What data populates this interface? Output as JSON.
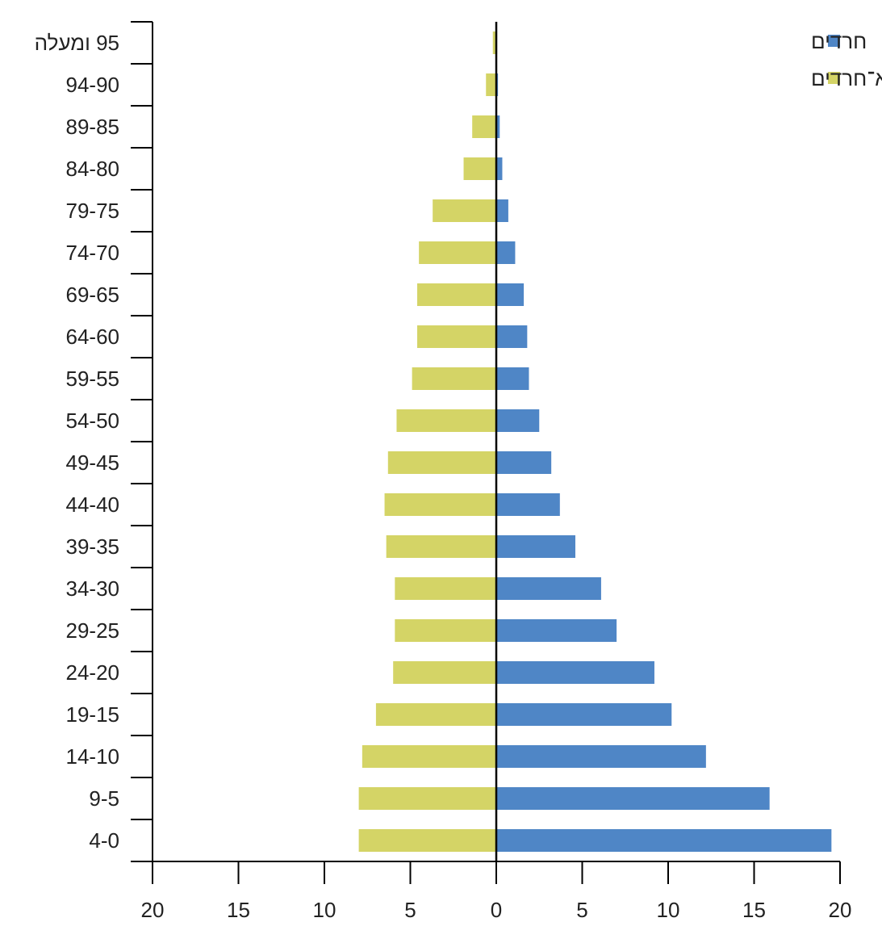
{
  "chart_data": {
    "type": "bar",
    "orientation": "horizontal",
    "layout": "population-pyramid",
    "categories": [
      "4-0",
      "9-5",
      "14-10",
      "19-15",
      "24-20",
      "29-25",
      "34-30",
      "39-35",
      "44-40",
      "49-45",
      "54-50",
      "59-55",
      "64-60",
      "69-65",
      "74-70",
      "79-75",
      "84-80",
      "89-85",
      "94-90",
      "95 ומעלה"
    ],
    "series": [
      {
        "name": "חרדים",
        "color": "#4f86c6",
        "side": "right",
        "values": [
          19.5,
          15.9,
          12.2,
          10.2,
          9.2,
          7.0,
          6.1,
          4.6,
          3.7,
          3.2,
          2.5,
          1.9,
          1.8,
          1.6,
          1.1,
          0.7,
          0.35,
          0.2,
          0.1,
          0.05
        ]
      },
      {
        "name": "יהודים לא־חרדים",
        "color": "#d4d466",
        "side": "left",
        "values": [
          8.0,
          8.0,
          7.8,
          7.0,
          6.0,
          5.9,
          5.9,
          6.4,
          6.5,
          6.3,
          5.8,
          4.9,
          4.6,
          4.6,
          4.5,
          3.7,
          1.9,
          1.4,
          0.6,
          0.2
        ]
      }
    ],
    "x_ticks": [
      "20",
      "15",
      "10",
      "5",
      "0",
      "5",
      "10",
      "15",
      "20"
    ],
    "xlim": [
      -20,
      20
    ],
    "legend_position": "top-right",
    "grid": false
  }
}
